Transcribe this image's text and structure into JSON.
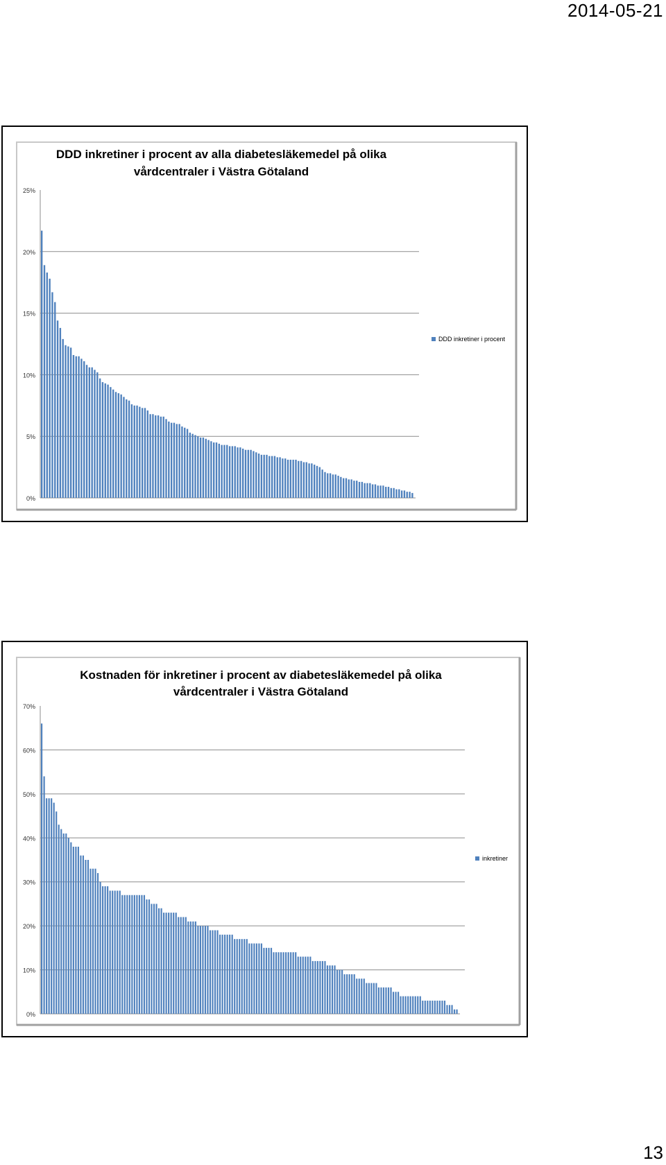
{
  "page": {
    "date": "2014-05-21",
    "page_number": "13"
  },
  "chart_data": [
    {
      "type": "bar",
      "title": "DDD inkretiner i procent av alla diabetesläkemedel på olika vårdcentraler i Västra Götaland",
      "title_lines": [
        "DDD inkretiner i procent av alla diabetesläkemedel på olika",
        "vårdcentraler i Västra Götaland"
      ],
      "ylim": [
        0,
        25
      ],
      "yticks": [
        0,
        5,
        10,
        15,
        20,
        25
      ],
      "ytick_labels": [
        "0%",
        "5%",
        "10%",
        "15%",
        "20%",
        "25%"
      ],
      "grid": true,
      "legend_position": "right",
      "series": [
        {
          "name": "DDD inkretiner i procent",
          "color": "#4f81bd",
          "values": [
            21.7,
            18.9,
            18.3,
            17.8,
            16.7,
            15.9,
            14.4,
            13.8,
            12.9,
            12.4,
            12.3,
            12.2,
            11.6,
            11.5,
            11.5,
            11.3,
            11.1,
            10.8,
            10.6,
            10.6,
            10.4,
            10.2,
            9.7,
            9.4,
            9.3,
            9.2,
            9.0,
            8.8,
            8.6,
            8.5,
            8.4,
            8.2,
            8.0,
            7.9,
            7.6,
            7.5,
            7.5,
            7.4,
            7.3,
            7.3,
            7.1,
            6.8,
            6.8,
            6.7,
            6.7,
            6.6,
            6.6,
            6.4,
            6.2,
            6.1,
            6.1,
            6.0,
            6.0,
            5.8,
            5.7,
            5.6,
            5.3,
            5.2,
            5.1,
            5.0,
            4.9,
            4.9,
            4.8,
            4.7,
            4.6,
            4.5,
            4.5,
            4.4,
            4.3,
            4.3,
            4.3,
            4.2,
            4.2,
            4.2,
            4.1,
            4.1,
            4.0,
            3.9,
            3.9,
            3.9,
            3.8,
            3.7,
            3.6,
            3.5,
            3.5,
            3.5,
            3.4,
            3.4,
            3.4,
            3.3,
            3.3,
            3.2,
            3.2,
            3.1,
            3.1,
            3.1,
            3.1,
            3.0,
            3.0,
            2.9,
            2.9,
            2.8,
            2.8,
            2.7,
            2.6,
            2.5,
            2.3,
            2.1,
            2.0,
            2.0,
            1.9,
            1.9,
            1.8,
            1.7,
            1.6,
            1.6,
            1.5,
            1.5,
            1.4,
            1.4,
            1.3,
            1.3,
            1.2,
            1.2,
            1.2,
            1.1,
            1.1,
            1.0,
            1.0,
            1.0,
            0.9,
            0.9,
            0.8,
            0.8,
            0.7,
            0.7,
            0.6,
            0.6,
            0.5,
            0.5,
            0.4
          ]
        }
      ]
    },
    {
      "type": "bar",
      "title": "Kostnaden för inkretiner i procent av diabetesläkemedel på olika vårdcentraler i Västra Götaland",
      "title_lines": [
        "Kostnaden för inkretiner i procent av diabetesläkemedel på olika",
        "vårdcentraler i Västra Götaland"
      ],
      "ylim": [
        0,
        70
      ],
      "yticks": [
        0,
        10,
        20,
        30,
        40,
        50,
        60,
        70
      ],
      "ytick_labels": [
        "0%",
        "10%",
        "20%",
        "30%",
        "40%",
        "50%",
        "60%",
        "70%"
      ],
      "grid": true,
      "legend_position": "right",
      "series": [
        {
          "name": "inkretiner",
          "color": "#4f81bd",
          "values": [
            66,
            54,
            49,
            49,
            49,
            48,
            46,
            43,
            42,
            41,
            41,
            40,
            39,
            38,
            38,
            38,
            36,
            36,
            35,
            35,
            33,
            33,
            33,
            32,
            30,
            29,
            29,
            29,
            28,
            28,
            28,
            28,
            28,
            27,
            27,
            27,
            27,
            27,
            27,
            27,
            27,
            27,
            27,
            26,
            26,
            25,
            25,
            25,
            24,
            24,
            23,
            23,
            23,
            23,
            23,
            23,
            22,
            22,
            22,
            22,
            21,
            21,
            21,
            21,
            20,
            20,
            20,
            20,
            20,
            19,
            19,
            19,
            19,
            18,
            18,
            18,
            18,
            18,
            18,
            17,
            17,
            17,
            17,
            17,
            17,
            16,
            16,
            16,
            16,
            16,
            16,
            15,
            15,
            15,
            15,
            14,
            14,
            14,
            14,
            14,
            14,
            14,
            14,
            14,
            14,
            13,
            13,
            13,
            13,
            13,
            13,
            12,
            12,
            12,
            12,
            12,
            12,
            11,
            11,
            11,
            11,
            10,
            10,
            10,
            9,
            9,
            9,
            9,
            9,
            8,
            8,
            8,
            8,
            7,
            7,
            7,
            7,
            7,
            6,
            6,
            6,
            6,
            6,
            6,
            5,
            5,
            5,
            4,
            4,
            4,
            4,
            4,
            4,
            4,
            4,
            4,
            3,
            3,
            3,
            3,
            3,
            3,
            3,
            3,
            3,
            3,
            2,
            2,
            2,
            1,
            1
          ]
        }
      ]
    }
  ]
}
